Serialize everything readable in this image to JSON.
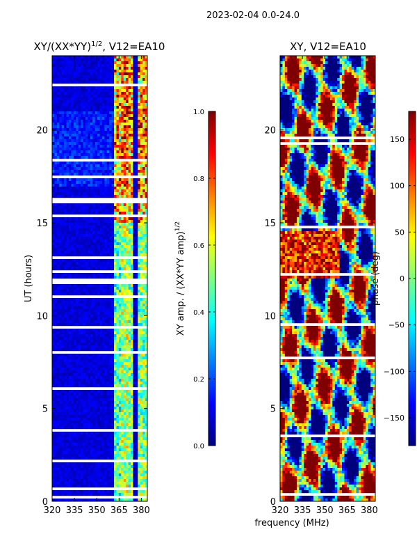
{
  "suptitle": "2023-02-04 0.0-24.0",
  "xlabel_shared": "frequency (MHz)",
  "chart_data": [
    {
      "type": "heatmap",
      "title_main": "XY/(XX*YY)",
      "title_exp": "1/2",
      "title_suffix": ", V12=EA10",
      "ylabel": "UT (hours)",
      "xlim": [
        320,
        384
      ],
      "ylim": [
        0,
        24
      ],
      "xticks": [
        "320",
        "335",
        "350",
        "365",
        "380"
      ],
      "xtick_values": [
        320,
        335,
        350,
        365,
        380
      ],
      "yticks": [
        "0",
        "5",
        "10",
        "15",
        "20"
      ],
      "ytick_values": [
        0,
        5,
        10,
        15,
        20
      ],
      "colorbar": {
        "label_main": "XY amp. / (XX*YY amp)",
        "label_exp": "1/2",
        "range": [
          0.0,
          1.0
        ],
        "ticks": [
          "0.0",
          "0.2",
          "0.4",
          "0.6",
          "0.8",
          "1.0"
        ],
        "tick_values": [
          0.0,
          0.2,
          0.4,
          0.6,
          0.8,
          1.0
        ]
      },
      "description_bands": [
        {
          "freq": [
            320,
            361
          ],
          "value": 0.05
        },
        {
          "freq": [
            361,
            366
          ],
          "value": 0.45
        },
        {
          "freq": [
            366,
            372
          ],
          "value": 0.55
        },
        {
          "freq": [
            372,
            384
          ],
          "value": 0.5
        }
      ]
    },
    {
      "type": "heatmap",
      "title": "XY, V12=EA10",
      "xlim": [
        320,
        384
      ],
      "ylim": [
        0,
        24
      ],
      "xticks": [
        "320",
        "335",
        "350",
        "365",
        "380"
      ],
      "xtick_values": [
        320,
        335,
        350,
        365,
        380
      ],
      "yticks": [
        "0",
        "5",
        "10",
        "15",
        "20"
      ],
      "ytick_values": [
        0,
        5,
        10,
        15,
        20
      ],
      "colorbar": {
        "label": "phase (deg)",
        "range": [
          -180,
          180
        ],
        "ticks": [
          "−150",
          "−100",
          "−50",
          "0",
          "50",
          "100",
          "150"
        ],
        "tick_values": [
          -150,
          -100,
          -50,
          0,
          50,
          100,
          150
        ]
      }
    }
  ],
  "colors": {
    "jet": [
      "#00007f",
      "#0000ff",
      "#007fff",
      "#00ffff",
      "#7fff7f",
      "#ffff00",
      "#ff7f00",
      "#ff0000",
      "#7f0000"
    ]
  }
}
